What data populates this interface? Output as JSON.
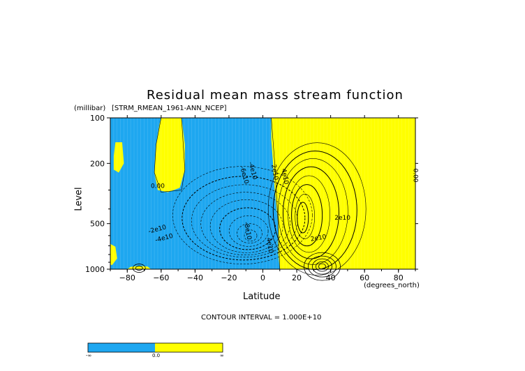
{
  "chart_data": {
    "type": "heatmap",
    "title": "Residual mean mass stream function",
    "variable_label": "[STRM_RMEAN_1961-ANN_NCEP]",
    "xlabel": "Latitude",
    "x_units": "(degrees_north)",
    "ylabel": "Level",
    "y_units": "(millibar)",
    "xlim": [
      -90,
      90
    ],
    "ylim": [
      1000,
      100
    ],
    "y_scale": "log",
    "x_ticks": [
      -80,
      -60,
      -40,
      -20,
      0,
      20,
      40,
      60,
      80
    ],
    "y_ticks": [
      100,
      200,
      500,
      1000
    ],
    "contour_interval_text": "CONTOUR INTERVAL = 1.000E+10",
    "contour_labels": [
      "0.00",
      "-2e10",
      "-4e10",
      "-6e10",
      "-4e10",
      "-8e10",
      "2e10",
      "2e10",
      "4e10",
      "4e10",
      "2e10",
      "0.00"
    ],
    "colors": {
      "negative": "#1ea7f0",
      "positive": "#ffff00"
    },
    "colorbar": {
      "ticks": [
        "-∞",
        "0.0",
        "∞"
      ]
    },
    "grid": false
  }
}
